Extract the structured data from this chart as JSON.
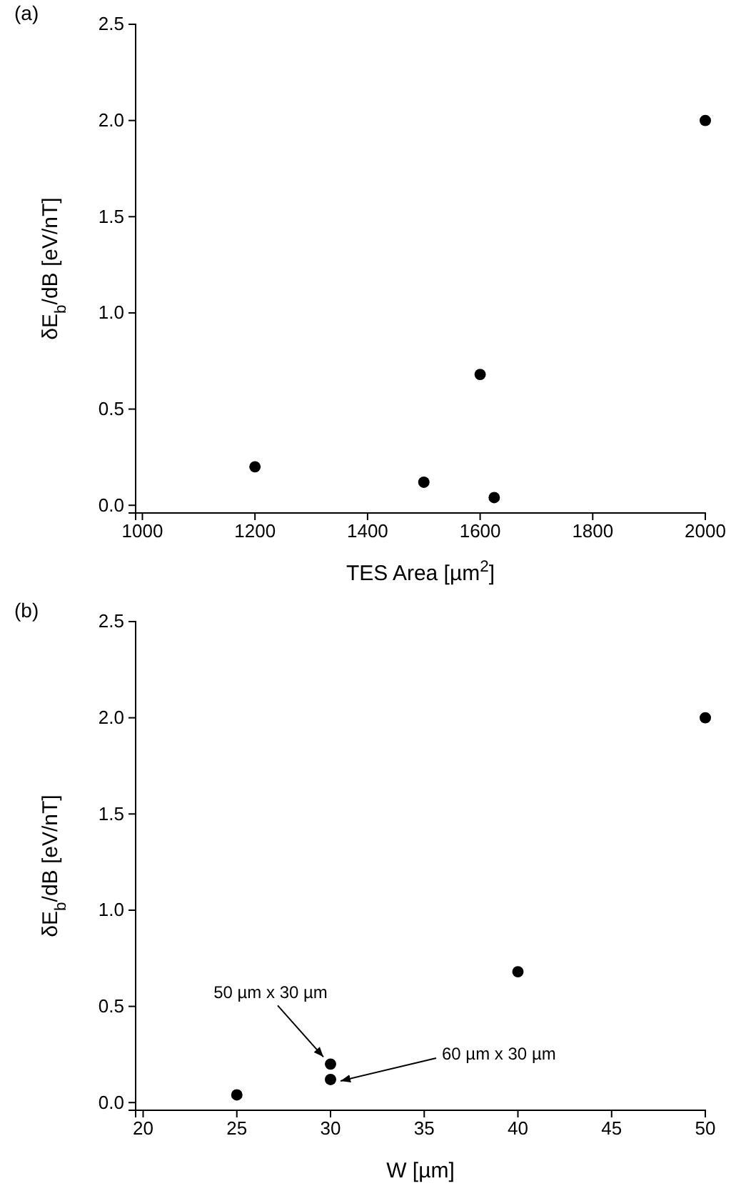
{
  "chart_data": [
    {
      "type": "scatter",
      "title": "(a)",
      "xlabel": "TES Area [µm$^{2}$]",
      "ylabel": "δE$_{b}$/dB [eV/nT]",
      "x": [
        1200,
        1500,
        1600,
        1625,
        2000
      ],
      "values": [
        0.2,
        0.12,
        0.68,
        0.04,
        2.0
      ],
      "color": "#000000",
      "marker": "circle",
      "xlim": [
        988,
        2000
      ],
      "xticks": [
        1000,
        1200,
        1400,
        1600,
        1800,
        2000
      ],
      "ylim": [
        -0.04,
        2.5
      ],
      "yticks": [
        {
          "value": 0,
          "label": "0.0"
        },
        0.5,
        {
          "value": 1,
          "label": "1.0"
        },
        1.5,
        {
          "value": 2,
          "label": "2.0"
        },
        2.5
      ]
    },
    {
      "type": "scatter",
      "title": "(b)",
      "xlabel": "W [µm]",
      "ylabel": "δE$_{b}$/dB [eV/nT]",
      "x": [
        25,
        30,
        30,
        40,
        50
      ],
      "values": [
        0.04,
        0.2,
        0.12,
        0.68,
        2.0
      ],
      "color": "#000000",
      "marker": "circle",
      "xlim": [
        19.6,
        50
      ],
      "xticks": [
        20,
        25,
        30,
        35,
        40,
        45,
        50
      ],
      "ylim": [
        -0.04,
        2.5
      ],
      "yticks": [
        {
          "value": 0,
          "label": "0.0"
        },
        0.5,
        {
          "value": 1,
          "label": "1.0"
        },
        1.5,
        {
          "value": 2,
          "label": "2.0"
        },
        2.5
      ],
      "annotations": [
        {
          "text": "50 µm x 30 µm",
          "x": 30,
          "y": 0.2
        },
        {
          "text": "60 µm x 30 µm",
          "x": 30,
          "y": 0.12
        }
      ]
    }
  ]
}
